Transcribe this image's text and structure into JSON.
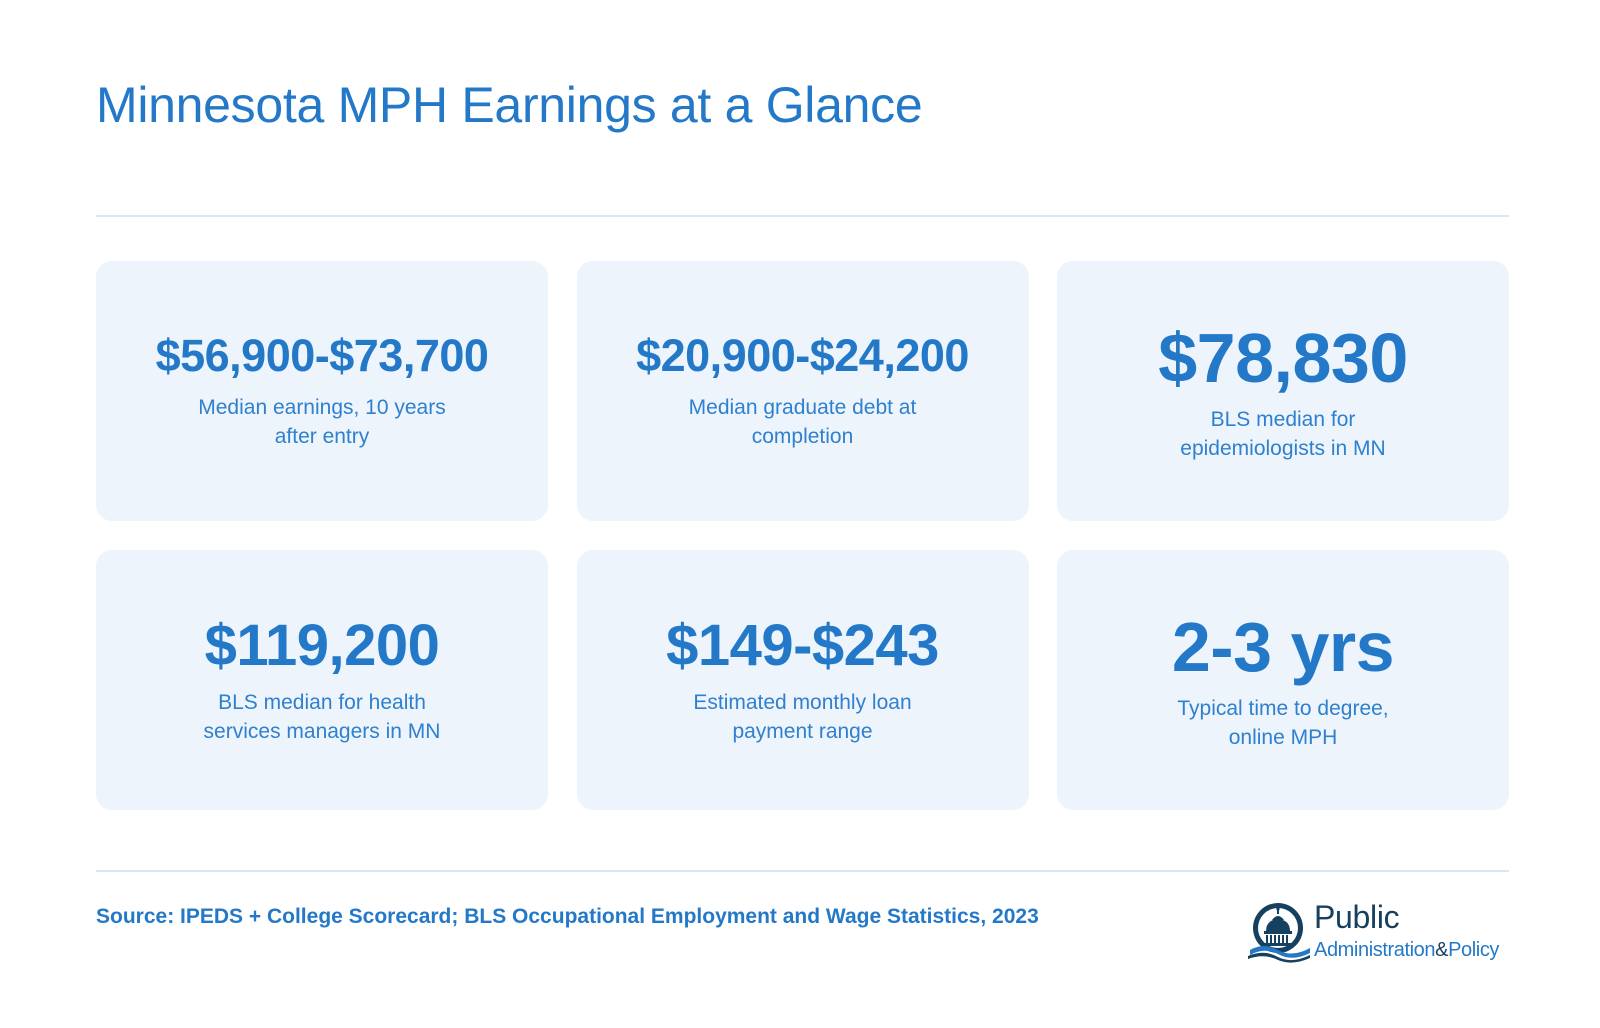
{
  "header": {
    "title": "Minnesota MPH Earnings at a Glance"
  },
  "stats": [
    {
      "value": "$56,900-$73,700",
      "label": "Median earnings, 10 years after entry"
    },
    {
      "value": "$20,900-$24,200",
      "label": "Median graduate debt at completion"
    },
    {
      "value": "$78,830",
      "label": "BLS median for epidemiologists in MN"
    },
    {
      "value": "$119,200",
      "label": "BLS median for health services managers in MN"
    },
    {
      "value": "$149-$243",
      "label": "Estimated monthly loan payment range"
    },
    {
      "value": "2-3 yrs",
      "label": "Typical time to degree, online MPH"
    }
  ],
  "footer": {
    "source": "Source: IPEDS + College Scorecard; BLS Occupational Employment and Wage Statistics, 2023",
    "logo": {
      "icon": "capitol-dome-icon",
      "word1": "Public",
      "word2": "Administration",
      "ampersand": "&",
      "word3": "Policy"
    }
  },
  "colors": {
    "accent": "#2478c8",
    "card_background": "#edf4fc",
    "divider": "#dbe6f1",
    "logo_dark": "#16405f"
  }
}
